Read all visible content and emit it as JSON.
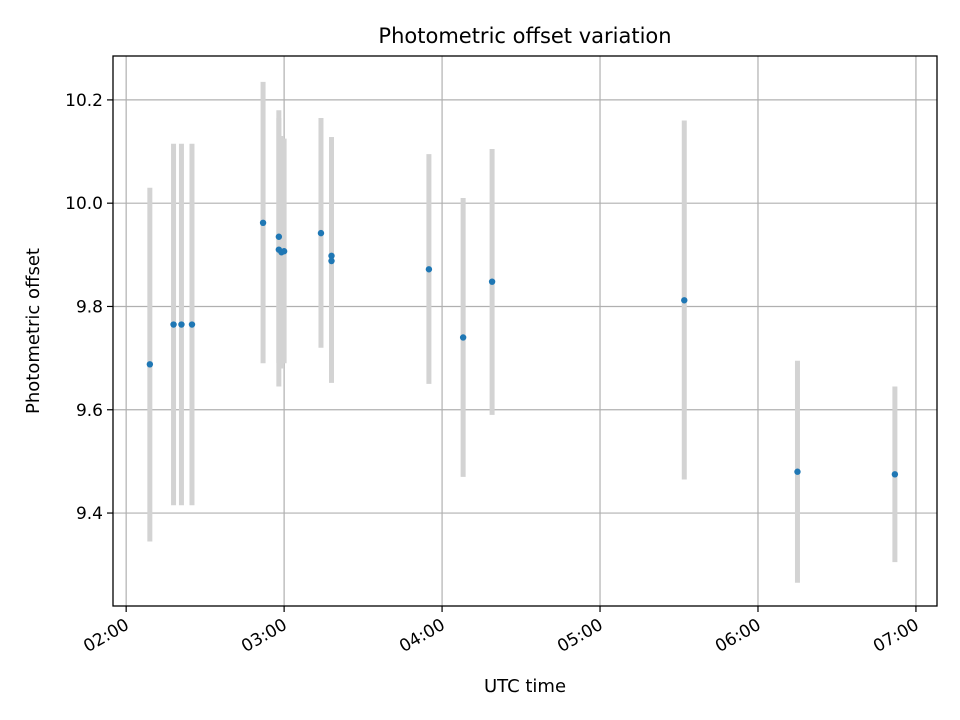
{
  "chart_data": {
    "type": "scatter",
    "title": "Photometric offset variation",
    "xlabel": "UTC time",
    "ylabel": "Photometric offset",
    "x_ticks": [
      "02:00",
      "03:00",
      "04:00",
      "05:00",
      "06:00",
      "07:00"
    ],
    "y_ticks": [
      "9.4",
      "9.6",
      "9.8",
      "10.0",
      "10.2"
    ],
    "xlim": [
      "01:55",
      "07:08"
    ],
    "ylim": [
      9.22,
      10.285
    ],
    "grid": true,
    "colors": {
      "points": "#1f77b4",
      "errorbars": "#d3d3d3",
      "grid": "#b0b0b0"
    },
    "points": [
      {
        "x": "02:09",
        "y": 9.688,
        "yerr_low": 9.345,
        "yerr_high": 10.03
      },
      {
        "x": "02:18",
        "y": 9.765,
        "yerr_low": 9.415,
        "yerr_high": 10.115
      },
      {
        "x": "02:21",
        "y": 9.765,
        "yerr_low": 9.415,
        "yerr_high": 10.115
      },
      {
        "x": "02:25",
        "y": 9.765,
        "yerr_low": 9.415,
        "yerr_high": 10.115
      },
      {
        "x": "02:52",
        "y": 9.962,
        "yerr_low": 9.69,
        "yerr_high": 10.235
      },
      {
        "x": "02:58",
        "y": 9.935,
        "yerr_low": 9.69,
        "yerr_high": 10.18
      },
      {
        "x": "02:58",
        "y": 9.91,
        "yerr_low": 9.645,
        "yerr_high": 10.165
      },
      {
        "x": "02:59",
        "y": 9.905,
        "yerr_low": 9.68,
        "yerr_high": 10.13
      },
      {
        "x": "03:00",
        "y": 9.907,
        "yerr_low": 9.69,
        "yerr_high": 10.125
      },
      {
        "x": "03:14",
        "y": 9.942,
        "yerr_low": 9.72,
        "yerr_high": 10.165
      },
      {
        "x": "03:18",
        "y": 9.888,
        "yerr_low": 9.652,
        "yerr_high": 10.128
      },
      {
        "x": "03:18",
        "y": 9.898,
        "yerr_low": 9.67,
        "yerr_high": 10.128
      },
      {
        "x": "03:55",
        "y": 9.872,
        "yerr_low": 9.65,
        "yerr_high": 10.095
      },
      {
        "x": "04:08",
        "y": 9.74,
        "yerr_low": 9.47,
        "yerr_high": 10.01
      },
      {
        "x": "04:19",
        "y": 9.848,
        "yerr_low": 9.59,
        "yerr_high": 10.105
      },
      {
        "x": "05:32",
        "y": 9.812,
        "yerr_low": 9.465,
        "yerr_high": 10.16
      },
      {
        "x": "06:15",
        "y": 9.48,
        "yerr_low": 9.265,
        "yerr_high": 9.695
      },
      {
        "x": "06:52",
        "y": 9.475,
        "yerr_low": 9.305,
        "yerr_high": 9.645
      }
    ]
  }
}
